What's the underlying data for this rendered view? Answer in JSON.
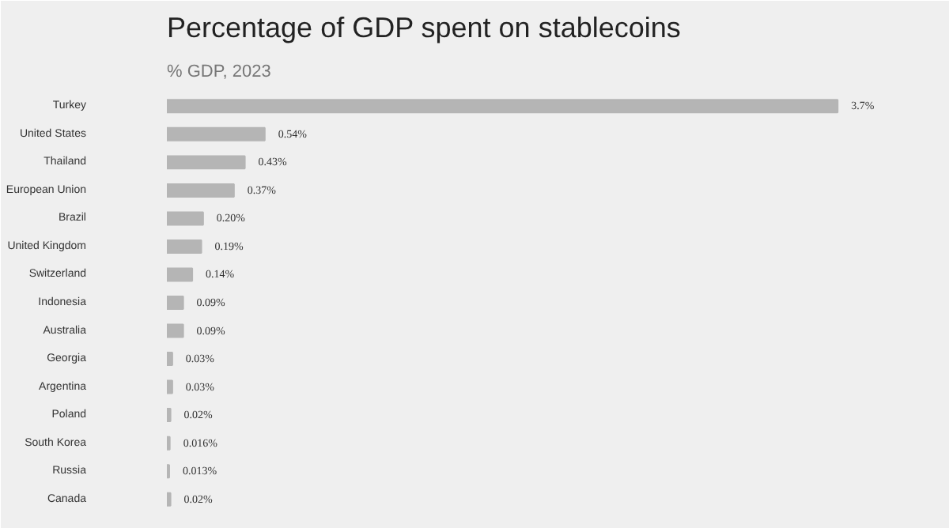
{
  "chart_data": {
    "type": "bar",
    "orientation": "horizontal",
    "title": "Percentage of GDP spent on stablecoins",
    "subtitle": "% GDP, 2023",
    "categories": [
      "Turkey",
      "United States",
      "Thailand",
      "European Union",
      "Brazil",
      "United Kingdom",
      "Switzerland",
      "Indonesia",
      "Australia",
      "Georgia",
      "Argentina",
      "Poland",
      "South Korea",
      "Russia",
      "Canada"
    ],
    "values": [
      3.7,
      0.54,
      0.43,
      0.37,
      0.2,
      0.19,
      0.14,
      0.09,
      0.09,
      0.03,
      0.03,
      0.02,
      0.016,
      0.013,
      0.02
    ],
    "value_labels": [
      "3.7%",
      "0.54%",
      "0.43%",
      "0.37%",
      "0.20%",
      "0.19%",
      "0.14%",
      "0.09%",
      "0.09%",
      "0.03%",
      "0.03%",
      "0.02%",
      "0.016%",
      "0.013%",
      "0.02%"
    ],
    "color": "#b5b5b5",
    "grid": false
  }
}
